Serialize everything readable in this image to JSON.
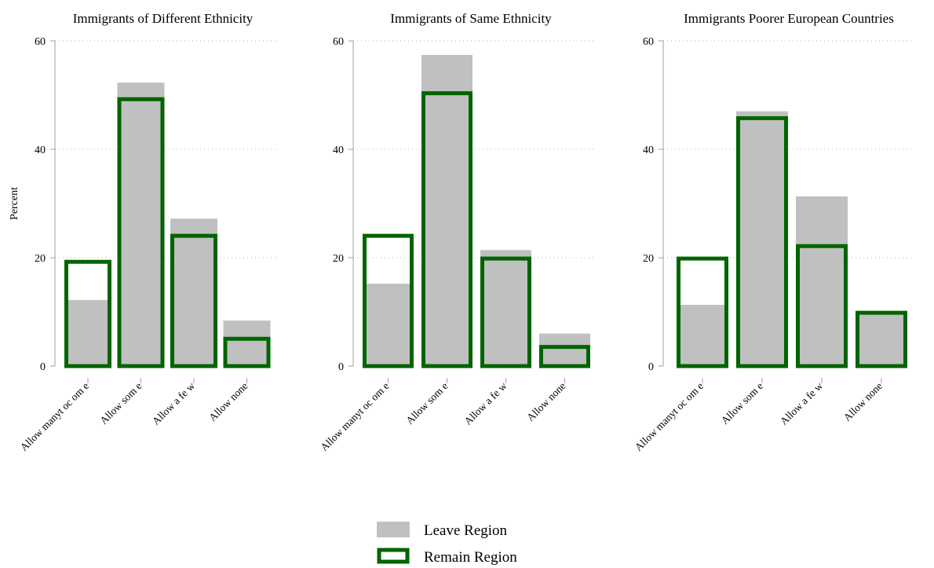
{
  "chart_data": {
    "type": "bar",
    "overlay": true,
    "ylabel": "Percent",
    "ylim": [
      0,
      60
    ],
    "yticks": [
      0,
      20,
      40,
      60
    ],
    "grid": "horizontal dotted",
    "legend": {
      "placement": "bottom-center",
      "items": [
        {
          "label": "Leave Region",
          "style": "filled",
          "color": "#c0c0c0"
        },
        {
          "label": "Remain Region",
          "style": "outline",
          "color": "#006400"
        }
      ]
    },
    "colors": {
      "leave_fill": "#c0c0c0",
      "remain_outline": "#006400",
      "grid": "#b0b0b0",
      "axis": "#a0a0a0"
    },
    "panels": [
      {
        "title": "Immigrants of Different Ethnicity",
        "categories": [
          "Allow manyt oc om e",
          "Allow som e",
          "Allow a fe w",
          "Allow none"
        ],
        "series": [
          {
            "name": "Leave Region",
            "values": [
              12.2,
              52.3,
              27.2,
              8.4
            ]
          },
          {
            "name": "Remain Region",
            "values": [
              19.6,
              49.6,
              24.4,
              5.4
            ]
          }
        ]
      },
      {
        "title": "Immigrants of Same Ethnicity",
        "categories": [
          "Allow manyt oc om e",
          "Allow som e",
          "Allow a fe w",
          "Allow none"
        ],
        "series": [
          {
            "name": "Leave Region",
            "values": [
              15.2,
              57.4,
              21.4,
              6.0
            ]
          },
          {
            "name": "Remain Region",
            "values": [
              24.4,
              50.7,
              20.2,
              3.9
            ]
          }
        ]
      },
      {
        "title": "Immigrants Poorer European Countries",
        "categories": [
          "Allow manyt oc om e",
          "Allow som e",
          "Allow a fe w",
          "Allow none"
        ],
        "series": [
          {
            "name": "Leave Region",
            "values": [
              11.3,
              47.0,
              31.3,
              9.7
            ]
          },
          {
            "name": "Remain Region",
            "values": [
              20.2,
              46.1,
              22.5,
              10.2
            ]
          }
        ]
      }
    ]
  }
}
